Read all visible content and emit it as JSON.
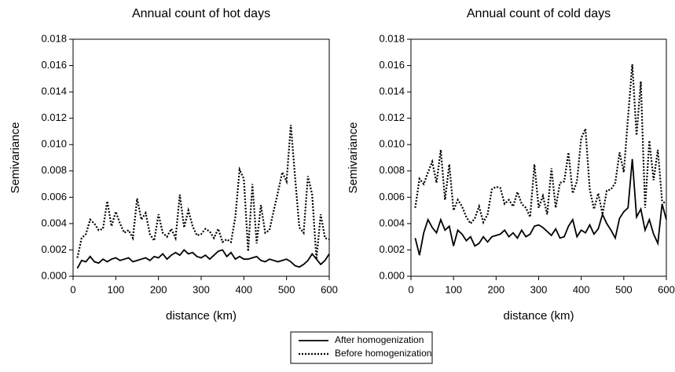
{
  "chart_data": [
    {
      "type": "line",
      "title": "Annual count of hot days",
      "x_label": "distance (km)",
      "y_label": "Semivariance",
      "xlim": [
        0,
        600
      ],
      "xticks": [
        0,
        100,
        200,
        300,
        400,
        500,
        600
      ],
      "ylim": [
        0,
        0.018
      ],
      "yticks": [
        {
          "value": 0,
          "label": "0.000"
        },
        {
          "value": 0.002,
          "label": "0.002"
        },
        {
          "value": 0.004,
          "label": "0.004"
        },
        {
          "value": 0.006,
          "label": "0.006"
        },
        {
          "value": 0.008,
          "label": "0.008"
        },
        {
          "value": 0.01,
          "label": "0.010"
        },
        {
          "value": 0.012,
          "label": "0.012"
        },
        {
          "value": 0.014,
          "label": "0.014"
        },
        {
          "value": 0.016,
          "label": "0.016"
        },
        {
          "value": 0.018,
          "label": "0.018"
        }
      ],
      "x": [
        10,
        20,
        30,
        40,
        50,
        60,
        70,
        80,
        90,
        100,
        110,
        120,
        130,
        140,
        150,
        160,
        170,
        180,
        190,
        200,
        210,
        220,
        230,
        240,
        250,
        260,
        270,
        280,
        290,
        300,
        310,
        320,
        330,
        340,
        350,
        360,
        370,
        380,
        390,
        400,
        410,
        420,
        430,
        440,
        450,
        460,
        470,
        480,
        490,
        500,
        510,
        520,
        530,
        540,
        550,
        560,
        570,
        580,
        590,
        600
      ],
      "legend": "bottom",
      "series": [
        {
          "name": "After homogenization",
          "color": "#000000",
          "dash": "solid",
          "values": [
            0.0006,
            0.0012,
            0.0011,
            0.0015,
            0.0011,
            0.001,
            0.0013,
            0.0011,
            0.0013,
            0.0014,
            0.0012,
            0.0013,
            0.0014,
            0.0011,
            0.0012,
            0.0013,
            0.0014,
            0.0012,
            0.0015,
            0.0014,
            0.0017,
            0.0013,
            0.0016,
            0.0018,
            0.0016,
            0.002,
            0.0017,
            0.0018,
            0.0015,
            0.0014,
            0.0016,
            0.0013,
            0.0016,
            0.0019,
            0.002,
            0.0015,
            0.0018,
            0.0013,
            0.0015,
            0.0013,
            0.0013,
            0.0014,
            0.0015,
            0.0012,
            0.0011,
            0.0013,
            0.0012,
            0.0011,
            0.0012,
            0.0013,
            0.0011,
            0.0008,
            0.0007,
            0.0009,
            0.0012,
            0.0017,
            0.0013,
            0.0009,
            0.0012,
            0.0017
          ]
        },
        {
          "name": "Before homogenization",
          "color": "#000000",
          "dash": "dotted",
          "values": [
            0.0014,
            0.0029,
            0.0032,
            0.0043,
            0.004,
            0.0035,
            0.0036,
            0.0057,
            0.0038,
            0.0049,
            0.004,
            0.0033,
            0.0035,
            0.0029,
            0.0059,
            0.0043,
            0.0048,
            0.0032,
            0.0027,
            0.0047,
            0.0033,
            0.003,
            0.0036,
            0.0029,
            0.0062,
            0.0037,
            0.005,
            0.0038,
            0.0031,
            0.0032,
            0.0036,
            0.0034,
            0.0029,
            0.0036,
            0.0026,
            0.0028,
            0.0026,
            0.0045,
            0.0081,
            0.0074,
            0.0019,
            0.007,
            0.0025,
            0.0054,
            0.0033,
            0.0035,
            0.005,
            0.0064,
            0.0079,
            0.0072,
            0.0115,
            0.0075,
            0.0037,
            0.0033,
            0.0076,
            0.0062,
            0.0013,
            0.0047,
            0.0029,
            0.0028
          ]
        }
      ]
    },
    {
      "type": "line",
      "title": "Annual count of cold days",
      "x_label": "distance (km)",
      "y_label": "Semivariance",
      "xlim": [
        0,
        600
      ],
      "xticks": [
        0,
        100,
        200,
        300,
        400,
        500,
        600
      ],
      "ylim": [
        0,
        0.018
      ],
      "yticks": [
        {
          "value": 0,
          "label": "0.000"
        },
        {
          "value": 0.002,
          "label": "0.002"
        },
        {
          "value": 0.004,
          "label": "0.004"
        },
        {
          "value": 0.006,
          "label": "0.006"
        },
        {
          "value": 0.008,
          "label": "0.008"
        },
        {
          "value": 0.01,
          "label": "0.010"
        },
        {
          "value": 0.012,
          "label": "0.012"
        },
        {
          "value": 0.014,
          "label": "0.014"
        },
        {
          "value": 0.016,
          "label": "0.016"
        },
        {
          "value": 0.018,
          "label": "0.018"
        }
      ],
      "x": [
        10,
        20,
        30,
        40,
        50,
        60,
        70,
        80,
        90,
        100,
        110,
        120,
        130,
        140,
        150,
        160,
        170,
        180,
        190,
        200,
        210,
        220,
        230,
        240,
        250,
        260,
        270,
        280,
        290,
        300,
        310,
        320,
        330,
        340,
        350,
        360,
        370,
        380,
        390,
        400,
        410,
        420,
        430,
        440,
        450,
        460,
        470,
        480,
        490,
        500,
        510,
        520,
        530,
        540,
        550,
        560,
        570,
        580,
        590,
        600
      ],
      "series": [
        {
          "color": "#000000",
          "dash": "solid",
          "values": [
            0.0029,
            0.0016,
            0.0033,
            0.0043,
            0.0037,
            0.0033,
            0.0043,
            0.0035,
            0.0038,
            0.0023,
            0.0035,
            0.0032,
            0.0027,
            0.003,
            0.0023,
            0.0025,
            0.003,
            0.0026,
            0.003,
            0.0031,
            0.0032,
            0.0035,
            0.003,
            0.0033,
            0.0029,
            0.0035,
            0.003,
            0.0032,
            0.0038,
            0.0039,
            0.0037,
            0.0034,
            0.0031,
            0.0036,
            0.0029,
            0.003,
            0.0038,
            0.0043,
            0.003,
            0.0035,
            0.0033,
            0.0039,
            0.0032,
            0.0036,
            0.0047,
            0.004,
            0.0035,
            0.0029,
            0.0044,
            0.0049,
            0.0052,
            0.0089,
            0.0045,
            0.0051,
            0.0035,
            0.0043,
            0.0032,
            0.0025,
            0.0055,
            0.0043
          ]
        },
        {
          "color": "#000000",
          "dash": "dotted",
          "values": [
            0.0052,
            0.0074,
            0.007,
            0.0079,
            0.0087,
            0.0071,
            0.0096,
            0.0058,
            0.0085,
            0.005,
            0.0058,
            0.0053,
            0.0045,
            0.004,
            0.0044,
            0.0053,
            0.0041,
            0.0047,
            0.0066,
            0.0068,
            0.0067,
            0.0055,
            0.0058,
            0.0053,
            0.0064,
            0.0055,
            0.0052,
            0.0045,
            0.0085,
            0.0052,
            0.0061,
            0.0047,
            0.0082,
            0.0052,
            0.0071,
            0.0072,
            0.0094,
            0.0063,
            0.0072,
            0.0105,
            0.0112,
            0.0066,
            0.0051,
            0.0063,
            0.0047,
            0.0065,
            0.0066,
            0.0071,
            0.0094,
            0.0079,
            0.0121,
            0.0161,
            0.0107,
            0.0148,
            0.0052,
            0.0103,
            0.0073,
            0.0096,
            0.0057,
            0.0055
          ]
        }
      ]
    }
  ]
}
